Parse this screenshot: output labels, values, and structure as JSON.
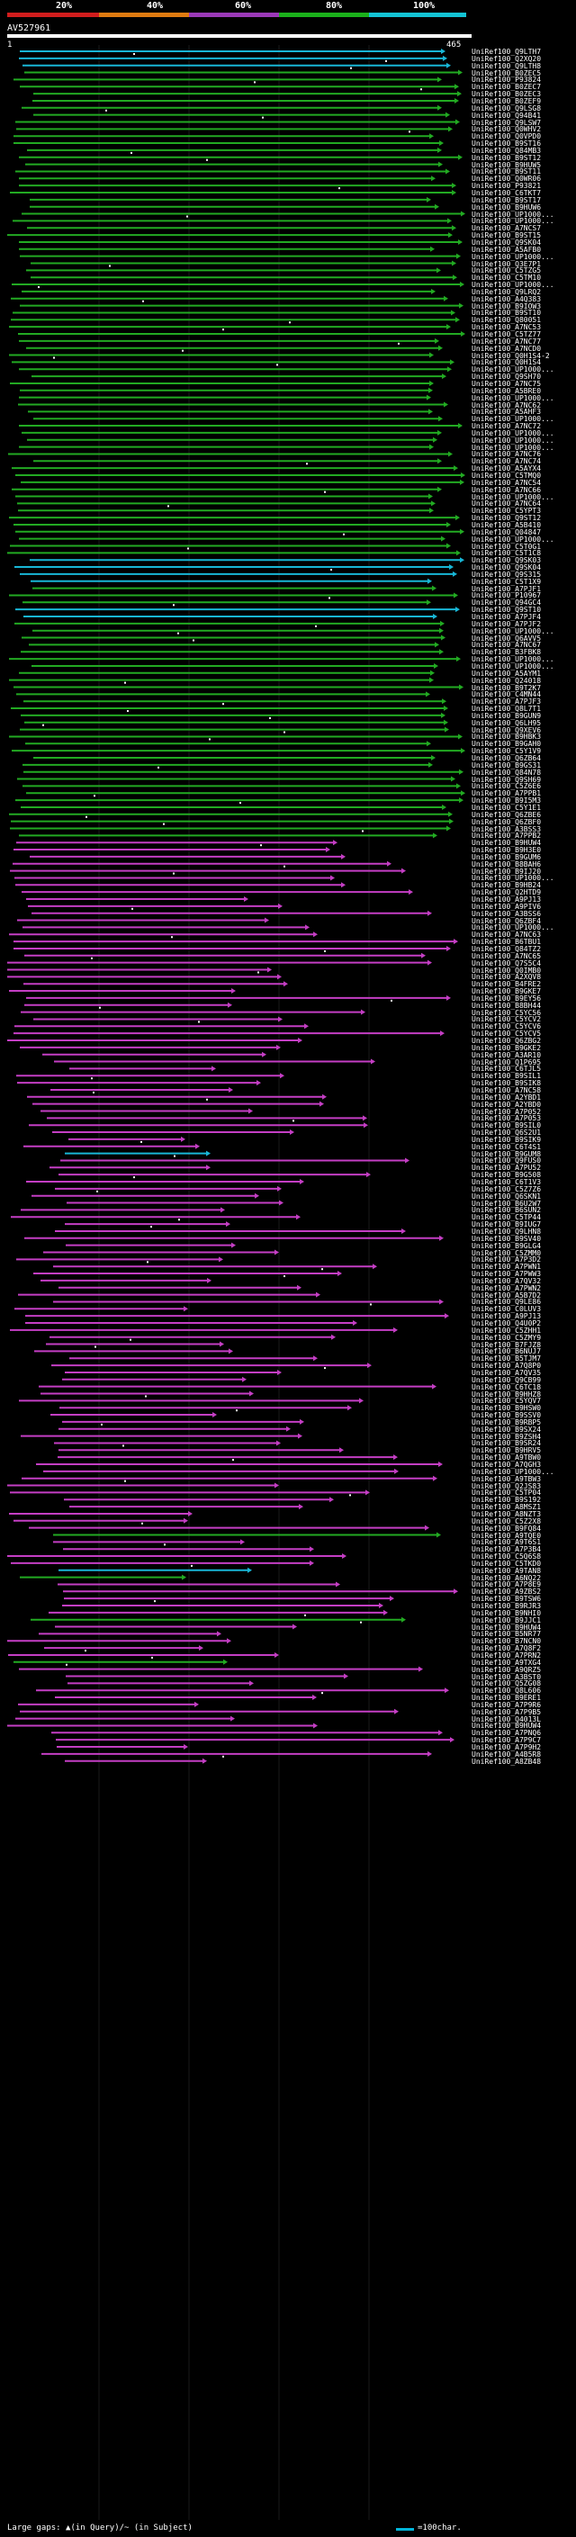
{
  "legend": {
    "labels": [
      "20%",
      "40%",
      "60%",
      "80%",
      "100%"
    ],
    "colors": [
      "#d21d1d",
      "#e07b10",
      "#9b39b8",
      "#1bb11b",
      "#13c4d6"
    ]
  },
  "query": {
    "id": "AV527961",
    "start": "1",
    "end": "465"
  },
  "colors": {
    "magenta": "#c43ec4",
    "green": "#22aa22",
    "cyan": "#18b6d6",
    "text": "#ffffff",
    "bg": "#000000"
  },
  "hits": [
    "UniRef100_Q9LTH7",
    "UniRef100_Q2XQ20",
    "UniRef100_Q9LTH8",
    "UniRef100_B0ZEC5",
    "UniRef100_P93824",
    "UniRef100_B0ZEC7",
    "UniRef100_B0ZEC3",
    "UniRef100_B0ZEF9",
    "UniRef100_Q9LSG8",
    "UniRef100_Q94B41",
    "UniRef100_Q9LSW7",
    "UniRef100_Q0WHV2",
    "UniRef100_Q0VPD0",
    "UniRef100_B9ST16",
    "UniRef100_Q84MB3",
    "UniRef100_B9ST12",
    "UniRef100_B9HUW5",
    "UniRef100_B9ST11",
    "UniRef100_Q0WR06",
    "UniRef100_P93821",
    "UniRef100_C6TKT7",
    "UniRef100_B9ST17",
    "UniRef100_B9HUW6",
    "UniRef100_UP1000...",
    "UniRef100_UP1000...",
    "UniRef100_A7NCS7",
    "UniRef100_B9ST15",
    "UniRef100_Q9SK04",
    "UniRef100_A5AFB0",
    "UniRef100_UP1000...",
    "UniRef100_Q3E7P1",
    "UniRef100_C5TZG5",
    "UniRef100_C5TM10",
    "UniRef100_UP1000...",
    "UniRef100_Q9LRQ2",
    "UniRef100_A4Q383",
    "UniRef100_B9IOW3",
    "UniRef100_B9ST10",
    "UniRef100_Q80051",
    "UniRef100_A7NC53",
    "UniRef100_C5TZ77",
    "UniRef100_A7NC77",
    "UniRef100_A7NCD0",
    "UniRef100_Q0H1S4-2",
    "UniRef100_Q0H1S4",
    "UniRef100_UP1000...",
    "UniRef100_Q9SH70",
    "UniRef100_A7NC75",
    "UniRef100_A5BRE0",
    "UniRef100_UP1000...",
    "UniRef100_A7NC62",
    "UniRef100_A5AHF3",
    "UniRef100_UP1000...",
    "UniRef100_A7NC72",
    "UniRef100_UP1000...",
    "UniRef100_UP1000...",
    "UniRef100_UP1000...",
    "UniRef100_A7NC76",
    "UniRef100_A7NC74",
    "UniRef100_A5AYX4",
    "UniRef100_C5TMQ0",
    "UniRef100_A7NC54",
    "UniRef100_A7NC66",
    "UniRef100_UP1000...",
    "UniRef100_A7NC64",
    "UniRef100_C5YPT3",
    "UniRef100_Q9ST12",
    "UniRef100_A5B410",
    "UniRef100_Q04847",
    "UniRef100_UP1000...",
    "UniRef100_C5T0G1",
    "UniRef100_C5T1C8",
    "UniRef100_Q9SK03",
    "UniRef100_Q9SK04",
    "UniRef100_Q9S315",
    "UniRef100_C5T1X9",
    "UniRef100_A7PJF1",
    "UniRef100_P10967",
    "UniRef100_Q94GC4",
    "UniRef100_Q9ST10",
    "UniRef100_A7PJF4",
    "UniRef100_A7PJF2",
    "UniRef100_UP1000...",
    "UniRef100_Q6AVV5",
    "UniRef100_A7NC67",
    "UniRef100_B3FBK8",
    "UniRef100_UP1000...",
    "UniRef100_UP1000...",
    "UniRef100_A5AYM1",
    "UniRef100_Q24018",
    "UniRef100_B9T2K7",
    "UniRef100_C4MN44",
    "UniRef100_A7PJF3",
    "UniRef100_Q8L7T1",
    "UniRef100_B9GUN9",
    "UniRef100_Q6LH95",
    "UniRef100_Q9XEV6",
    "UniRef100_B9HBK3",
    "UniRef100_B9GAH0",
    "UniRef100_C5Y1V9",
    "UniRef100_Q6ZB64",
    "UniRef100_B9GS31",
    "UniRef100_Q84N78",
    "UniRef100_Q9SH69",
    "UniRef100_C5Z6E6",
    "UniRef100_A7PPB1",
    "UniRef100_B9I5M3",
    "UniRef100_C5Y1E1",
    "UniRef100_Q6ZBE6",
    "UniRef100_Q6ZBF0",
    "UniRef100_A3BSS3",
    "UniRef100_A7PPB2",
    "UniRef100_B9HUW4",
    "UniRef100_B9H3E0",
    "UniRef100_B9GUM6",
    "UniRef100_B8BAH6",
    "UniRef100_B9IJ20",
    "UniRef100_UP1000...",
    "UniRef100_B9HB24",
    "UniRef100_Q2HTD9",
    "UniRef100_A9PJ13",
    "UniRef100_A9PIV6",
    "UniRef100_A3BSS6",
    "UniRef100_Q6ZBF4",
    "UniRef100_UP1000...",
    "UniRef100_A7NC63",
    "UniRef100_B6TBU1",
    "UniRef100_Q84TZ2",
    "UniRef100_A7NC65",
    "UniRef100_Q7S5C4",
    "UniRef100_Q0IMB0",
    "UniRef100_A2XQV8",
    "UniRef100_B4FRE2",
    "UniRef100_B9GKE7",
    "UniRef100_B9EY56",
    "UniRef100_B8BH44",
    "UniRef100_C5YC56",
    "UniRef100_C5YCV2",
    "UniRef100_C5YCV6",
    "UniRef100_C5YCV5",
    "UniRef100_Q6ZBG2",
    "UniRef100_B9GKE2",
    "UniRef100_A3AR10",
    "UniRef100_Q1P695",
    "UniRef100_C6TJL5",
    "UniRef100_B9SIL1",
    "UniRef100_B9SIK8",
    "UniRef100_A7NC58",
    "UniRef100_A2YBD1",
    "UniRef100_A2YBD0",
    "UniRef100_A7P052",
    "UniRef100_A7P053",
    "UniRef100_B9SIL0",
    "UniRef100_Q6S2U1",
    "UniRef100_B9SIK9",
    "UniRef100_C6T4S1",
    "UniRef100_B9GUM8",
    "UniRef100_Q9FUS0",
    "UniRef100_A7PU52",
    "UniRef100_B9G508",
    "UniRef100_C6T1V3",
    "UniRef100_C5Z7Z6",
    "UniRef100_Q6SKN1",
    "UniRef100_B6U2W7",
    "UniRef100_B6SUN2",
    "UniRef100_C5TP44",
    "UniRef100_B9IUG7",
    "UniRef100_Q9LHN8",
    "UniRef100_B9SV40",
    "UniRef100_B9GLG4",
    "UniRef100_C5ZMM0",
    "UniRef100_A7P3D2",
    "UniRef100_A7PWN1",
    "UniRef100_A7PWW3",
    "UniRef100_A7QV32",
    "UniRef100_A7PWN2",
    "UniRef100_A5B7D2",
    "UniRef100_Q9LE86",
    "UniRef100_C0LUV3",
    "UniRef100_A9PJ13",
    "UniRef100_Q4U0P2",
    "UniRef100_C5ZHH1",
    "UniRef100_C5ZMY9",
    "UniRef100_B7FJZ8",
    "UniRef100_B6NUJ7",
    "UniRef100_B5TJM7",
    "UniRef100_A7Q8P0",
    "UniRef100_A7QV35",
    "UniRef100_Q9CB99",
    "UniRef100_C6TC18",
    "UniRef100_B9HHZ8",
    "UniRef100_C5YQV7",
    "UniRef100_B9HSW0",
    "UniRef100_B9SSV0",
    "UniRef100_B9RBP5",
    "UniRef100_B9SX24",
    "UniRef100_B9ZSH4",
    "UniRef100_B9SR24",
    "UniRef100_B9HRV5",
    "UniRef100_A9TBW0",
    "UniRef100_A7QGH3",
    "UniRef100_UP1000...",
    "UniRef100_A9TBW3",
    "UniRef100_Q2JS83",
    "UniRef100_C5TP04",
    "UniRef100_B9S192",
    "UniRef100_A8MSZ1",
    "UniRef100_A8NZT3",
    "UniRef100_C5Z2X8",
    "UniRef100_B9FQ84",
    "UniRef100_A9TQE0",
    "UniRef100_A9T6S1",
    "UniRef100_A7P3B4",
    "UniRef100_C5Q6S8",
    "UniRef100_C5TKD0",
    "UniRef100_A9TAN8",
    "UniRef100_A6NQ22",
    "UniRef100_A7P8E9",
    "UniRef100_A9ZBS2",
    "UniRef100_B9TSW6",
    "UniRef100_B9RJR3",
    "UniRef100_B9NHI0",
    "UniRef100_B9JJC1",
    "UniRef100_B9HUW4",
    "UniRef100_B5NR77",
    "UniRef100_B7NCN0",
    "UniRef100_A7Q8F2",
    "UniRef100_A7PRN2",
    "UniRef100_A9TXG4",
    "UniRef100_A9QRZ5",
    "UniRef100_A3BST0",
    "UniRef100_Q5ZG08",
    "UniRef100_Q8L606",
    "UniRef100_B9ERE1",
    "UniRef100_A7P9R6",
    "UniRef100_A7P9B5",
    "UniRef100_Q4013L",
    "UniRef100_B9HUW4",
    "UniRef100_A7PNQ6",
    "UniRef100_A7P9C7",
    "UniRef100_A7P9H2",
    "UniRef100_A4B5R8",
    "UniRef100_A8ZB48"
  ],
  "footer": {
    "label": "Large gaps: ▲(in Query)/~ (in Subject)",
    "scale": "=100char."
  }
}
